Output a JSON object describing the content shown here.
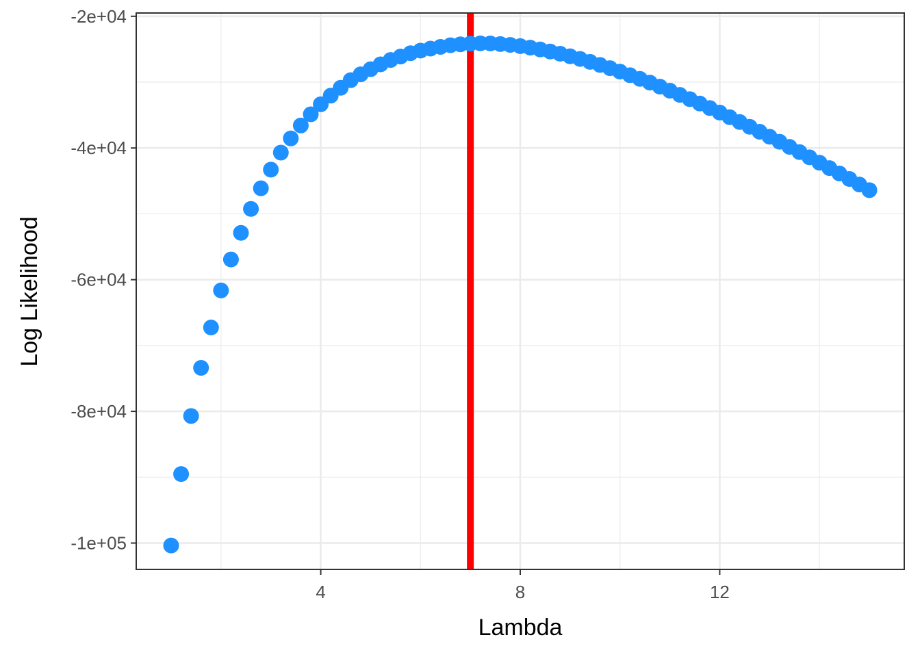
{
  "chart_data": {
    "type": "scatter",
    "title": "",
    "xlabel": "Lambda",
    "ylabel": "Log Likelihood",
    "xlim": [
      0.3,
      15.7
    ],
    "ylim": [
      -104000,
      -19500
    ],
    "x_ticks": [
      4,
      8,
      12
    ],
    "x_tick_labels": [
      "4",
      "8",
      "12"
    ],
    "y_ticks": [
      -20000,
      -40000,
      -60000,
      -80000,
      -100000
    ],
    "y_tick_labels": [
      "-2e+04",
      "-4e+04",
      "-6e+04",
      "-8e+04",
      "-1e+05"
    ],
    "x_minor_ticks": [
      2,
      6,
      10,
      14
    ],
    "y_minor_ticks": [
      -30000,
      -50000,
      -70000,
      -90000
    ],
    "grid": true,
    "legend": "none",
    "point_color": "#1E90FF",
    "vline": {
      "x": 7.0,
      "color": "#FF0000"
    },
    "points": [
      {
        "x": 1.0,
        "y": -100380
      },
      {
        "x": 1.2,
        "y": -89520
      },
      {
        "x": 1.4,
        "y": -80700
      },
      {
        "x": 1.6,
        "y": -73390
      },
      {
        "x": 1.8,
        "y": -67260
      },
      {
        "x": 2.0,
        "y": -61630
      },
      {
        "x": 2.2,
        "y": -56930
      },
      {
        "x": 2.4,
        "y": -52890
      },
      {
        "x": 2.6,
        "y": -49250
      },
      {
        "x": 2.8,
        "y": -46120
      },
      {
        "x": 3.0,
        "y": -43290
      },
      {
        "x": 3.2,
        "y": -40700
      },
      {
        "x": 3.4,
        "y": -38540
      },
      {
        "x": 3.6,
        "y": -36580
      },
      {
        "x": 3.8,
        "y": -34880
      },
      {
        "x": 4.0,
        "y": -33360
      },
      {
        "x": 4.2,
        "y": -32050
      },
      {
        "x": 4.4,
        "y": -30850
      },
      {
        "x": 4.6,
        "y": -29700
      },
      {
        "x": 4.8,
        "y": -28820
      },
      {
        "x": 5.0,
        "y": -28030
      },
      {
        "x": 5.2,
        "y": -27290
      },
      {
        "x": 5.4,
        "y": -26630
      },
      {
        "x": 5.6,
        "y": -26110
      },
      {
        "x": 5.8,
        "y": -25610
      },
      {
        "x": 6.0,
        "y": -25210
      },
      {
        "x": 6.2,
        "y": -24900
      },
      {
        "x": 6.4,
        "y": -24640
      },
      {
        "x": 6.6,
        "y": -24400
      },
      {
        "x": 6.8,
        "y": -24250
      },
      {
        "x": 7.0,
        "y": -24150
      },
      {
        "x": 7.2,
        "y": -24110
      },
      {
        "x": 7.4,
        "y": -24130
      },
      {
        "x": 7.6,
        "y": -24210
      },
      {
        "x": 7.8,
        "y": -24340
      },
      {
        "x": 8.0,
        "y": -24530
      },
      {
        "x": 8.2,
        "y": -24760
      },
      {
        "x": 8.4,
        "y": -25030
      },
      {
        "x": 8.6,
        "y": -25340
      },
      {
        "x": 8.8,
        "y": -25690
      },
      {
        "x": 9.0,
        "y": -26070
      },
      {
        "x": 9.2,
        "y": -26480
      },
      {
        "x": 9.4,
        "y": -26920
      },
      {
        "x": 9.6,
        "y": -27390
      },
      {
        "x": 9.8,
        "y": -27880
      },
      {
        "x": 10.0,
        "y": -28400
      },
      {
        "x": 10.2,
        "y": -28940
      },
      {
        "x": 10.4,
        "y": -29500
      },
      {
        "x": 10.6,
        "y": -30080
      },
      {
        "x": 10.8,
        "y": -30680
      },
      {
        "x": 11.0,
        "y": -31300
      },
      {
        "x": 11.2,
        "y": -31930
      },
      {
        "x": 11.4,
        "y": -32580
      },
      {
        "x": 11.6,
        "y": -33250
      },
      {
        "x": 11.8,
        "y": -33930
      },
      {
        "x": 12.0,
        "y": -34620
      },
      {
        "x": 12.2,
        "y": -35330
      },
      {
        "x": 12.4,
        "y": -36050
      },
      {
        "x": 12.6,
        "y": -36780
      },
      {
        "x": 12.8,
        "y": -37530
      },
      {
        "x": 13.0,
        "y": -38290
      },
      {
        "x": 13.2,
        "y": -39050
      },
      {
        "x": 13.4,
        "y": -39830
      },
      {
        "x": 13.6,
        "y": -40620
      },
      {
        "x": 13.8,
        "y": -41420
      },
      {
        "x": 14.0,
        "y": -42230
      },
      {
        "x": 14.2,
        "y": -43050
      },
      {
        "x": 14.4,
        "y": -43870
      },
      {
        "x": 14.6,
        "y": -44710
      },
      {
        "x": 14.8,
        "y": -45550
      },
      {
        "x": 15.0,
        "y": -46400
      }
    ]
  }
}
